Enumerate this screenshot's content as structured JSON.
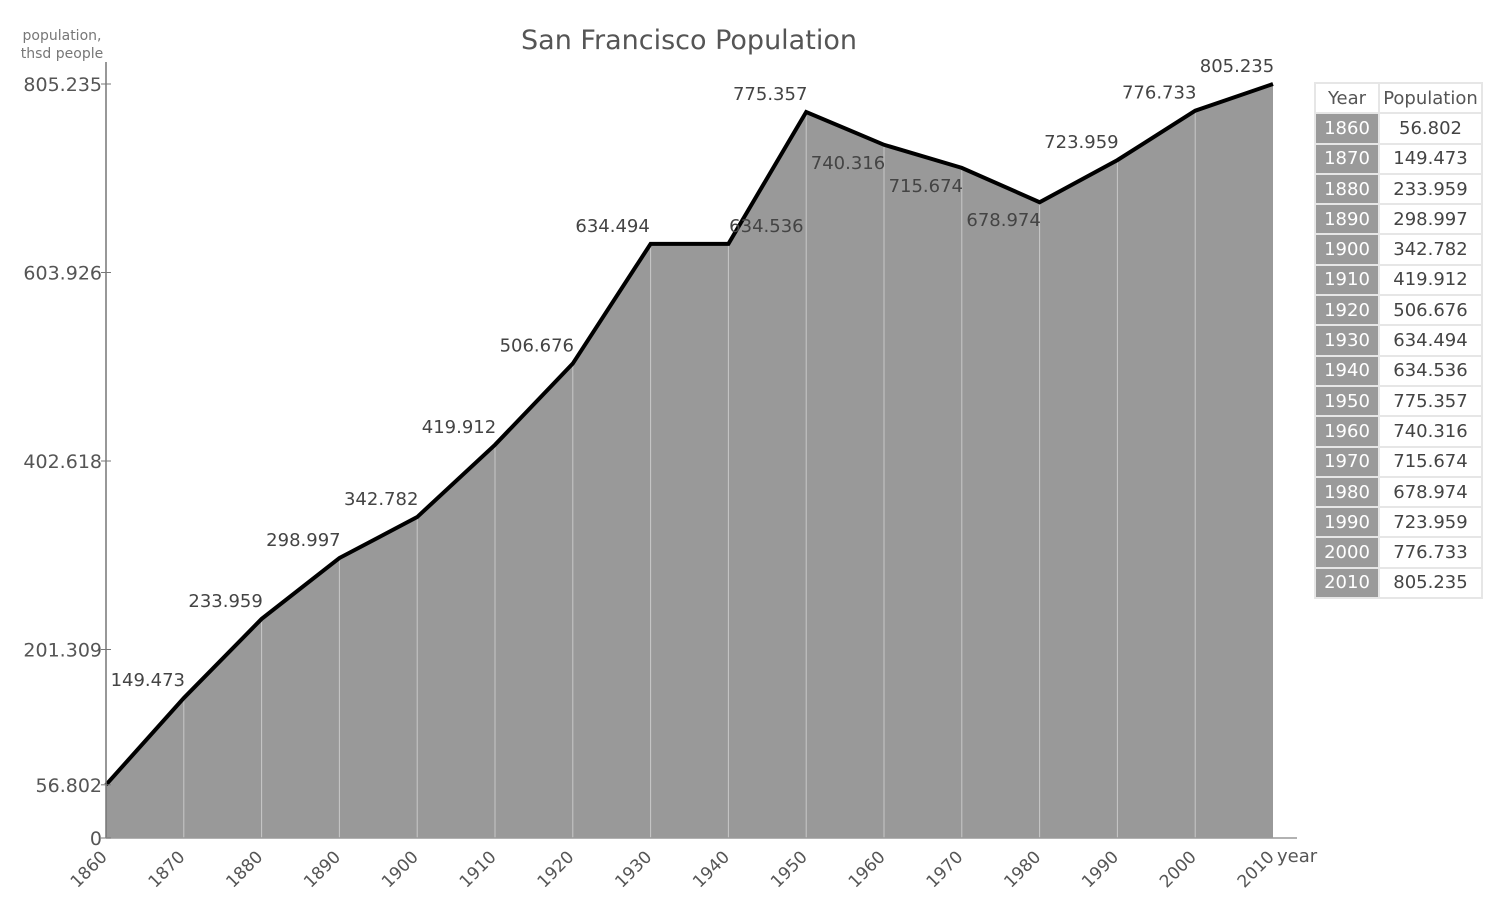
{
  "chart_data": {
    "type": "area",
    "title": "San Francisco Population",
    "ylabel": "population, thsd people",
    "xlabel": "year",
    "ylim": [
      0,
      805.235
    ],
    "yticks": [
      "805.235",
      "603.926",
      "402.618",
      "201.309",
      "56.802",
      "0"
    ],
    "ytick_values": [
      805.235,
      603.926,
      402.618,
      201.309,
      56.802,
      0
    ],
    "x": [
      "1860",
      "1870",
      "1880",
      "1890",
      "1900",
      "1910",
      "1920",
      "1930",
      "1940",
      "1950",
      "1960",
      "1970",
      "1980",
      "1990",
      "2000",
      "2010"
    ],
    "values": [
      56.802,
      149.473,
      233.959,
      298.997,
      342.782,
      419.912,
      506.676,
      634.494,
      634.536,
      775.357,
      740.316,
      715.674,
      678.974,
      723.959,
      776.733,
      805.235
    ],
    "data_labels": [
      "",
      "149.473",
      "233.959",
      "298.997",
      "342.782",
      "419.912",
      "506.676",
      "634.494",
      "634.536",
      "775.357",
      "740.316",
      "715.674",
      "678.974",
      "723.959",
      "776.733",
      "805.235"
    ],
    "fill_color": "#999999",
    "line_color": "#000000",
    "table": {
      "headers": [
        "Year",
        "Population"
      ],
      "rows": [
        [
          "1860",
          "56.802"
        ],
        [
          "1870",
          "149.473"
        ],
        [
          "1880",
          "233.959"
        ],
        [
          "1890",
          "298.997"
        ],
        [
          "1900",
          "342.782"
        ],
        [
          "1910",
          "419.912"
        ],
        [
          "1920",
          "506.676"
        ],
        [
          "1930",
          "634.494"
        ],
        [
          "1940",
          "634.536"
        ],
        [
          "1950",
          "775.357"
        ],
        [
          "1960",
          "740.316"
        ],
        [
          "1970",
          "715.674"
        ],
        [
          "1980",
          "678.974"
        ],
        [
          "1990",
          "723.959"
        ],
        [
          "2000",
          "776.733"
        ],
        [
          "2010",
          "805.235"
        ]
      ]
    }
  }
}
